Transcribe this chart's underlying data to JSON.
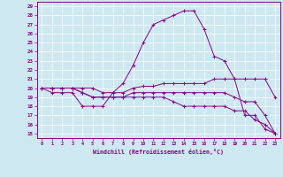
{
  "xlabel": "Windchill (Refroidissement éolien,°C)",
  "bg_color": "#cde8f0",
  "line_color": "#880088",
  "grid_color": "#ffffff",
  "xlim": [
    -0.5,
    23.5
  ],
  "ylim": [
    14.5,
    29.5
  ],
  "yticks": [
    15,
    16,
    17,
    18,
    19,
    20,
    21,
    22,
    23,
    24,
    25,
    26,
    27,
    28,
    29
  ],
  "xticks": [
    0,
    1,
    2,
    3,
    4,
    5,
    6,
    7,
    8,
    9,
    10,
    11,
    12,
    13,
    14,
    15,
    16,
    17,
    18,
    19,
    20,
    21,
    22,
    23
  ],
  "lines": [
    {
      "x": [
        0,
        1,
        2,
        3,
        4,
        5,
        6,
        7,
        8,
        9,
        10,
        11,
        12,
        13,
        14,
        15,
        16,
        17,
        18,
        19,
        20,
        21,
        22,
        23
      ],
      "y": [
        20,
        19.5,
        19.5,
        19.5,
        18,
        18,
        18,
        19.5,
        20.5,
        22.5,
        25,
        27,
        27.5,
        28,
        28.5,
        28.5,
        26.5,
        23.5,
        23,
        21,
        17,
        17,
        15.5,
        15
      ]
    },
    {
      "x": [
        0,
        1,
        2,
        3,
        4,
        5,
        6,
        7,
        8,
        9,
        10,
        11,
        12,
        13,
        14,
        15,
        16,
        17,
        18,
        19,
        20,
        21,
        22,
        23
      ],
      "y": [
        20,
        20,
        20,
        20,
        20,
        20,
        19.5,
        19.5,
        19.5,
        20,
        20.2,
        20.2,
        20.5,
        20.5,
        20.5,
        20.5,
        20.5,
        21,
        21,
        21,
        21,
        21,
        21,
        19
      ]
    },
    {
      "x": [
        0,
        1,
        2,
        3,
        4,
        5,
        6,
        7,
        8,
        9,
        10,
        11,
        12,
        13,
        14,
        15,
        16,
        17,
        18,
        19,
        20,
        21,
        22,
        23
      ],
      "y": [
        20,
        20,
        20,
        20,
        19.5,
        19,
        19,
        19,
        19,
        19.5,
        19.5,
        19.5,
        19.5,
        19.5,
        19.5,
        19.5,
        19.5,
        19.5,
        19.5,
        19,
        18.5,
        18.5,
        17,
        15
      ]
    },
    {
      "x": [
        0,
        1,
        2,
        3,
        4,
        5,
        6,
        7,
        8,
        9,
        10,
        11,
        12,
        13,
        14,
        15,
        16,
        17,
        18,
        19,
        20,
        21,
        22,
        23
      ],
      "y": [
        20,
        20,
        20,
        20,
        19.5,
        19,
        19,
        19,
        19,
        19,
        19,
        19,
        19,
        18.5,
        18,
        18,
        18,
        18,
        18,
        17.5,
        17.5,
        16.5,
        16,
        15
      ]
    }
  ]
}
